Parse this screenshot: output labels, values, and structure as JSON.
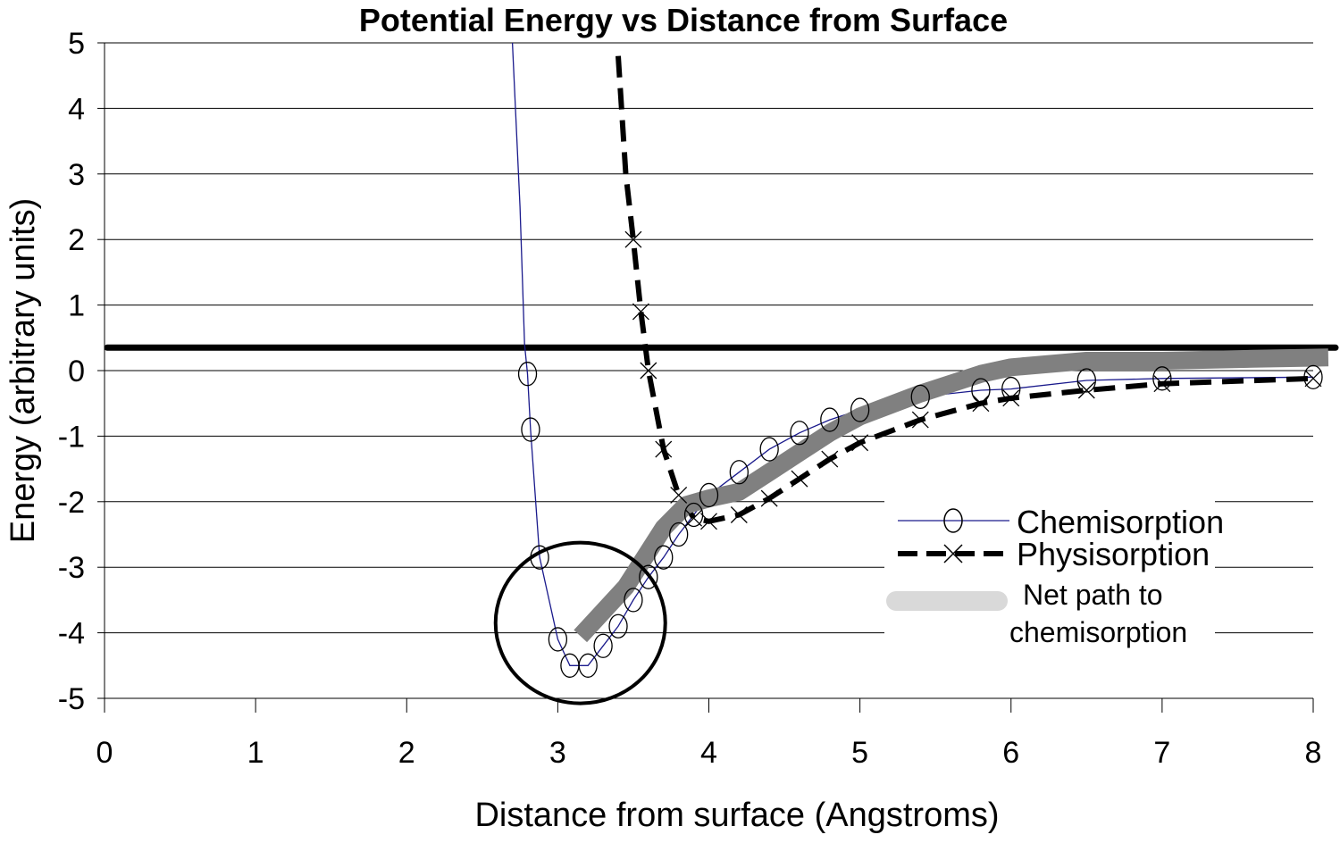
{
  "chart_data": {
    "type": "line",
    "title": "Potential Energy vs Distance from Surface",
    "xlabel": "Distance from surface (Angstroms)",
    "ylabel": "Energy (arbitrary units)",
    "xlim": [
      0,
      8
    ],
    "ylim": [
      -5,
      5
    ],
    "x_ticks": [
      "0",
      "1",
      "2",
      "3",
      "4",
      "5",
      "6",
      "7",
      "8"
    ],
    "y_ticks": [
      "5",
      "4",
      "3",
      "2",
      "1",
      "0",
      "-1",
      "-2",
      "-3",
      "-4",
      "-5"
    ],
    "grid": "horizontal",
    "legend_position": "lower-right",
    "horizontal_line": {
      "y": 0.35,
      "color": "#000000"
    },
    "highlight_circle": {
      "x": 3.15,
      "y": -3.85
    },
    "series": [
      {
        "name": "Chemisorption",
        "color": "#1a1a8c",
        "marker": "circle",
        "points": [
          [
            2.7,
            5.0
          ],
          [
            2.75,
            2.5
          ],
          [
            2.78,
            0.4
          ],
          [
            2.8,
            -0.05
          ],
          [
            2.82,
            -0.9
          ],
          [
            2.88,
            -2.85
          ],
          [
            3.0,
            -4.1
          ],
          [
            3.08,
            -4.5
          ],
          [
            3.2,
            -4.5
          ],
          [
            3.3,
            -4.2
          ],
          [
            3.4,
            -3.9
          ],
          [
            3.5,
            -3.5
          ],
          [
            3.6,
            -3.15
          ],
          [
            3.7,
            -2.85
          ],
          [
            3.8,
            -2.5
          ],
          [
            3.9,
            -2.2
          ],
          [
            4.0,
            -1.9
          ],
          [
            4.2,
            -1.55
          ],
          [
            4.4,
            -1.2
          ],
          [
            4.6,
            -0.95
          ],
          [
            4.8,
            -0.75
          ],
          [
            5.0,
            -0.6
          ],
          [
            5.4,
            -0.4
          ],
          [
            5.8,
            -0.3
          ],
          [
            6.0,
            -0.28
          ],
          [
            6.5,
            -0.15
          ],
          [
            7.0,
            -0.12
          ],
          [
            8.0,
            -0.1
          ]
        ]
      },
      {
        "name": "Physisorption",
        "color": "#000000",
        "marker": "x",
        "points": [
          [
            3.4,
            4.8
          ],
          [
            3.45,
            3.0
          ],
          [
            3.5,
            2.0
          ],
          [
            3.55,
            0.9
          ],
          [
            3.6,
            0.0
          ],
          [
            3.7,
            -1.2
          ],
          [
            3.8,
            -1.9
          ],
          [
            3.9,
            -2.25
          ],
          [
            4.0,
            -2.3
          ],
          [
            4.2,
            -2.2
          ],
          [
            4.4,
            -1.95
          ],
          [
            4.6,
            -1.65
          ],
          [
            4.8,
            -1.35
          ],
          [
            5.0,
            -1.1
          ],
          [
            5.4,
            -0.75
          ],
          [
            5.8,
            -0.5
          ],
          [
            6.0,
            -0.42
          ],
          [
            6.5,
            -0.3
          ],
          [
            7.0,
            -0.2
          ],
          [
            8.0,
            -0.12
          ]
        ]
      },
      {
        "name": "Net path to chemisorption",
        "color": "#808080",
        "marker": "none",
        "points": [
          [
            3.15,
            -4.05
          ],
          [
            3.45,
            -3.3
          ],
          [
            3.7,
            -2.4
          ],
          [
            3.85,
            -2.05
          ],
          [
            4.0,
            -1.95
          ],
          [
            4.2,
            -1.85
          ],
          [
            4.4,
            -1.55
          ],
          [
            4.6,
            -1.25
          ],
          [
            4.8,
            -0.95
          ],
          [
            5.0,
            -0.7
          ],
          [
            5.4,
            -0.35
          ],
          [
            5.8,
            -0.05
          ],
          [
            6.0,
            0.05
          ],
          [
            6.5,
            0.15
          ],
          [
            7.0,
            0.15
          ],
          [
            7.6,
            0.18
          ],
          [
            8.1,
            0.2
          ]
        ]
      }
    ],
    "legend": {
      "chemisorption": "Chemisorption",
      "physisorption": "Physisorption",
      "net_path_line1": "Net path to",
      "net_path_line2": "chemisorption"
    }
  }
}
